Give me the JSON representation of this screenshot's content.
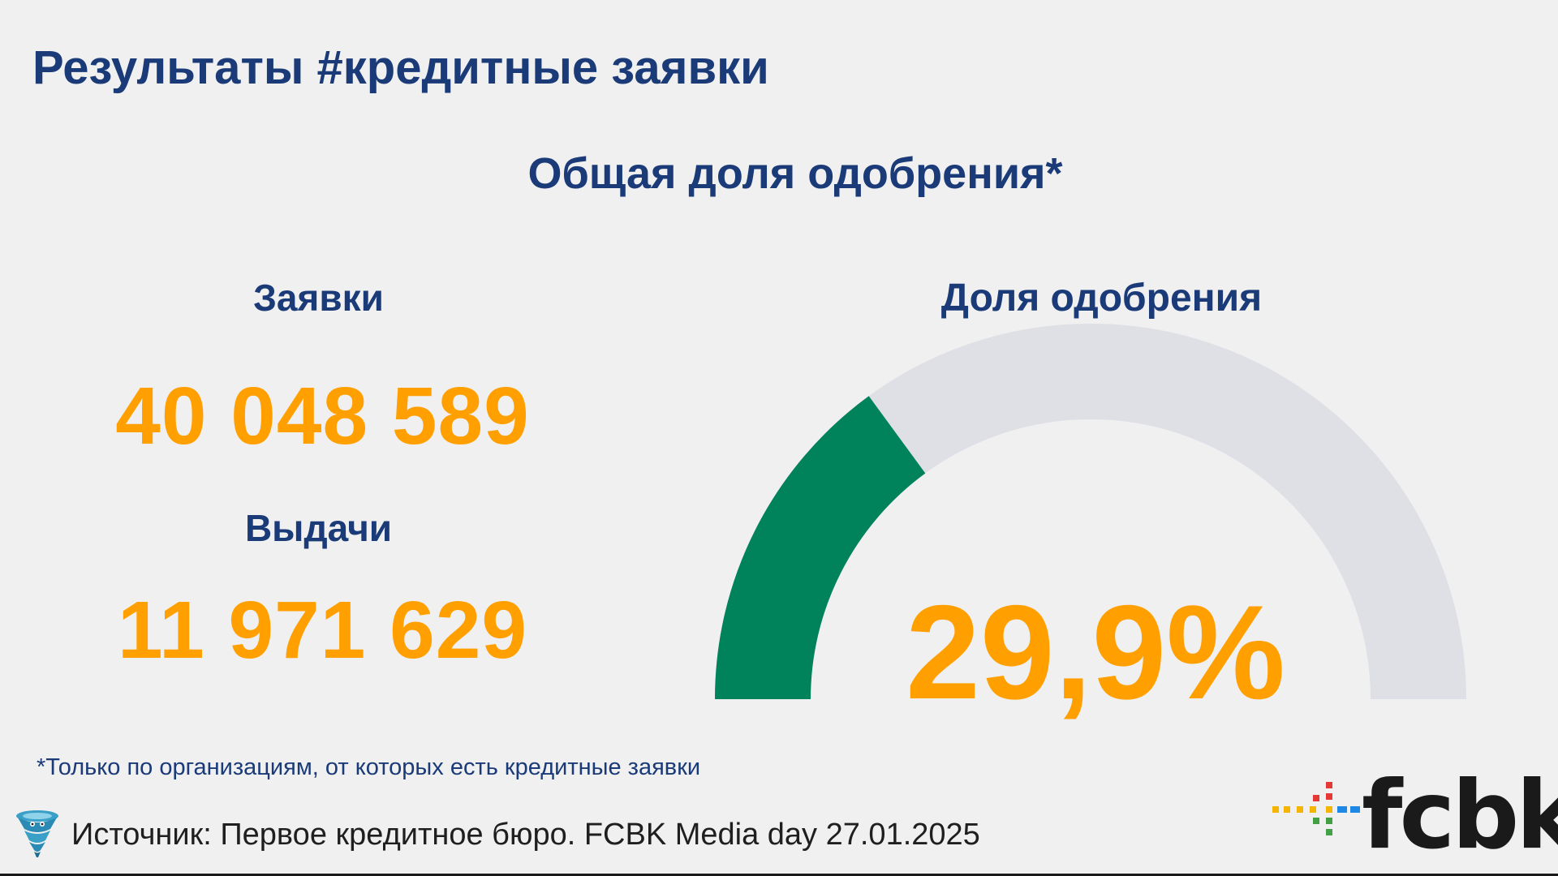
{
  "slide": {
    "title": "Результаты #кредитные заявки",
    "subtitle": "Общая доля одобрения*"
  },
  "metrics": {
    "applications": {
      "label": "Заявки",
      "value": "40 048 589"
    },
    "issuances": {
      "label": "Выдачи",
      "value": "11 971 629"
    }
  },
  "gauge": {
    "title": "Доля одобрения",
    "value_text": "29,9%",
    "value": 0.299,
    "fill_color": "#00825a",
    "track_color": "#dfe0e5"
  },
  "footnote": "*Только по организациям, от которых есть кредитные заявки",
  "source": "Источник: Первое кредитное бюро. FCBK Media day 27.01.2025",
  "logo": {
    "text": "fcbk",
    "icon": "fcbk-logo-icon"
  },
  "colors": {
    "accent": "#ff9f00",
    "heading": "#1a3a78",
    "background": "#f0f0f0"
  }
}
